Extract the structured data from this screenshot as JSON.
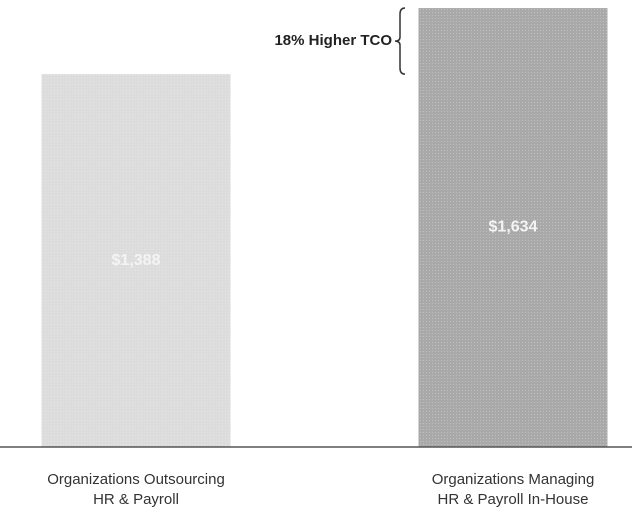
{
  "chart_data": {
    "type": "bar",
    "categories": [
      [
        "Organizations Outsourcing",
        "HR & Payroll"
      ],
      [
        "Organizations Managing",
        "HR & Payroll In-House"
      ]
    ],
    "values": [
      1388,
      1634
    ],
    "value_labels": [
      "$1,388",
      "$1,634"
    ],
    "colors": [
      "#dcdcdc",
      "#a9a9a9"
    ],
    "annotation": "18% Higher TCO",
    "ylim": [
      0,
      1664
    ]
  }
}
